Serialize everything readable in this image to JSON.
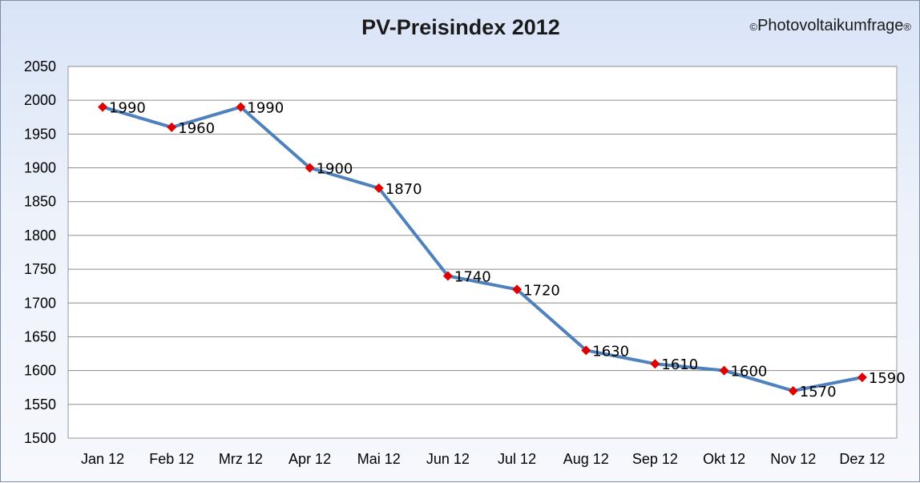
{
  "copyright": {
    "symbol_left": "©",
    "text": "Photovoltaikumfrage",
    "symbol_right": "®"
  },
  "chart_data": {
    "type": "line",
    "title": "PV-Preisindex 2012",
    "xlabel": "",
    "ylabel": "",
    "categories": [
      "Jan 12",
      "Feb 12",
      "Mrz 12",
      "Apr 12",
      "Mai 12",
      "Jun 12",
      "Jul 12",
      "Aug 12",
      "Sep 12",
      "Okt 12",
      "Nov 12",
      "Dez 12"
    ],
    "series": [
      {
        "values": [
          1990,
          1960,
          1990,
          1900,
          1870,
          1740,
          1720,
          1630,
          1610,
          1600,
          1570,
          1590
        ]
      }
    ],
    "data_labels": [
      "1990",
      "1960",
      "1990",
      "1900",
      "1870",
      "1740",
      "1720",
      "1630",
      "1610",
      "1600",
      "1570",
      "1590"
    ],
    "ylim": [
      1500,
      2050
    ],
    "yticks": [
      1500,
      1550,
      1600,
      1650,
      1700,
      1750,
      1800,
      1850,
      1900,
      1950,
      2000,
      2050
    ],
    "grid": true,
    "legend": "none",
    "colors": {
      "line": "#4f81bd",
      "marker": "#e00000",
      "plot_background": "#ffffff",
      "frame_background": "#dce6f7"
    }
  }
}
